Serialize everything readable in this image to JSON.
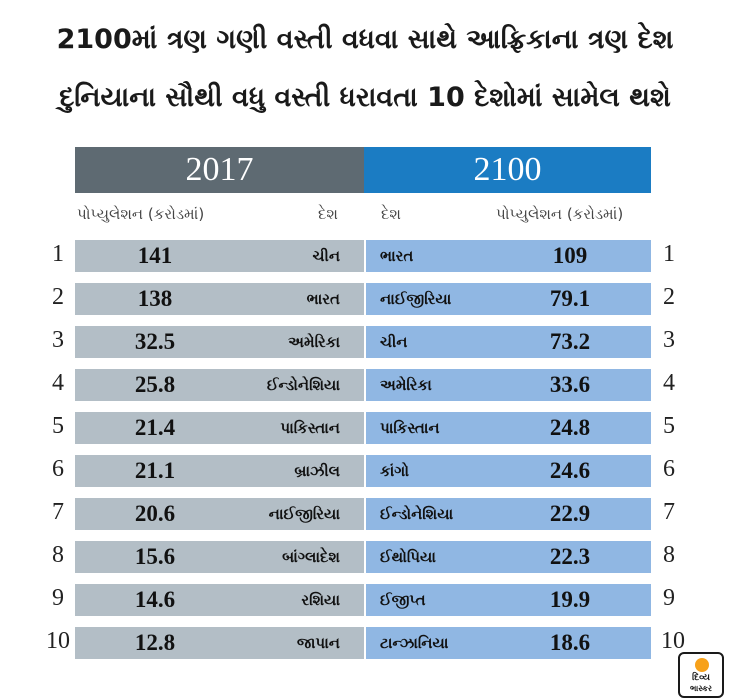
{
  "title": {
    "line1": "2100માં ત્રણ ગણી વસ્તી વધવા સાથે આફ્રિકાના ત્રણ દેશ",
    "line2": "દુનિયાના સૌથી વધુ વસ્તી ધરાવતા 10 દેશોમાં સામેલ થશે"
  },
  "chart_data": {
    "type": "table",
    "groups": [
      {
        "year": "2017",
        "value_header": "પોપ્યુલેશન (કરોડમાં)",
        "country_header": "દેશ",
        "rows": [
          {
            "country": "ચીન",
            "population": "141"
          },
          {
            "country": "ભારત",
            "population": "138"
          },
          {
            "country": "અમેરિકા",
            "population": "32.5"
          },
          {
            "country": "ઈન્ડોનેશિયા",
            "population": "25.8"
          },
          {
            "country": "પાકિસ્તાન",
            "population": "21.4"
          },
          {
            "country": "બ્રાઝીલ",
            "population": "21.1"
          },
          {
            "country": "નાઈજીરિયા",
            "population": "20.6"
          },
          {
            "country": "બાંગ્લાદેશ",
            "population": "15.6"
          },
          {
            "country": "રશિયા",
            "population": "14.6"
          },
          {
            "country": "જાપાન",
            "population": "12.8"
          }
        ]
      },
      {
        "year": "2100",
        "value_header": "પોપ્યુલેશન (કરોડમાં)",
        "country_header": "દેશ",
        "rows": [
          {
            "country": "ભારત",
            "population": "109"
          },
          {
            "country": "નાઈજીરિયા",
            "population": "79.1"
          },
          {
            "country": "ચીન",
            "population": "73.2"
          },
          {
            "country": "અમેરિકા",
            "population": "33.6"
          },
          {
            "country": "પાકિસ્તાન",
            "population": "24.8"
          },
          {
            "country": "કાંગો",
            "population": "24.6"
          },
          {
            "country": "ઈન્ડોનેશિયા",
            "population": "22.9"
          },
          {
            "country": "ઈથોપિયા",
            "population": "22.3"
          },
          {
            "country": "ઈજીપ્ત",
            "population": "19.9"
          },
          {
            "country": "ટાન્ઝાનિયા",
            "population": "18.6"
          }
        ]
      }
    ],
    "ranks": [
      "1",
      "2",
      "3",
      "4",
      "5",
      "6",
      "7",
      "8",
      "9",
      "10"
    ]
  },
  "colors": {
    "left_header": "#5e6a72",
    "right_header": "#1b7cc3",
    "left_row": "#b3bec6",
    "right_row": "#90b7e3",
    "logo_accent": "#f7a11a"
  },
  "logo": {
    "line1": "દિવ્ય",
    "line2": "ભાસ્કર"
  }
}
